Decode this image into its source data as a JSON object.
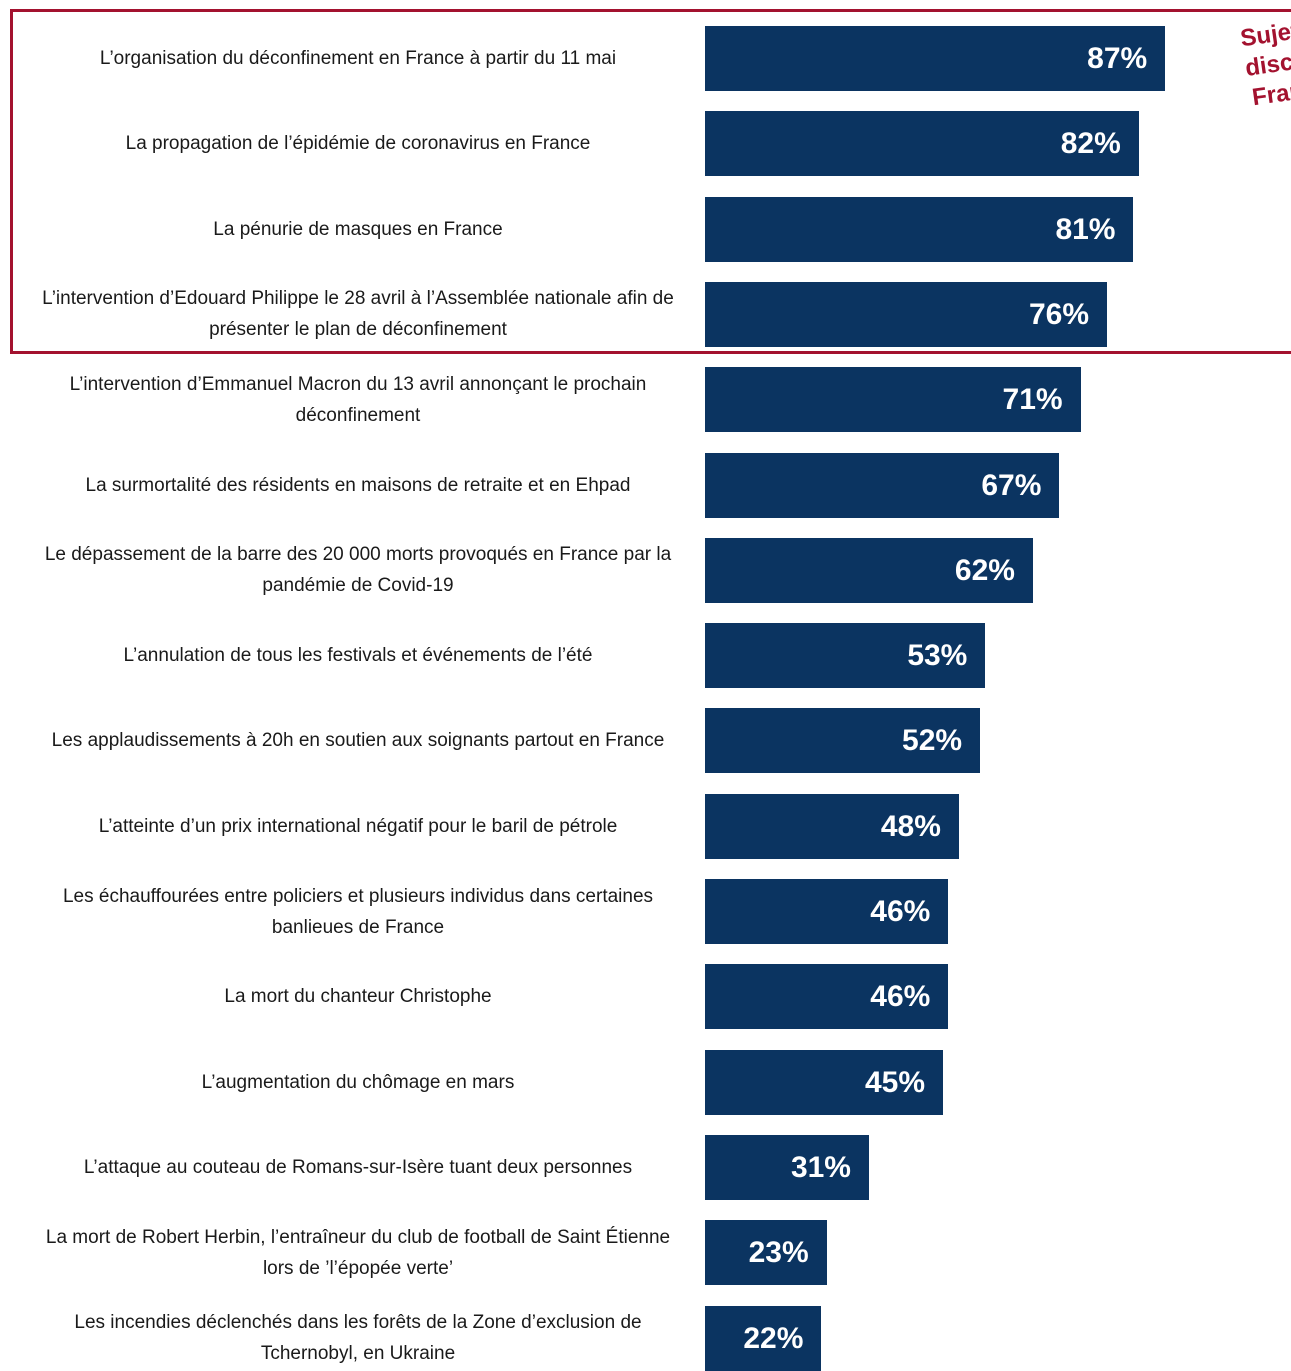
{
  "chart_data": {
    "type": "bar",
    "orientation": "horizontal",
    "categories": [
      "L’organisation du déconfinement en France à partir du 11 mai",
      "La propagation de l’épidémie de coronavirus en France",
      "La pénurie de masques en France",
      "L’intervention d’Edouard Philippe le 28 avril à l’Assemblée nationale afin de présenter le plan de déconfinement",
      "L’intervention d’Emmanuel Macron du 13 avril annonçant le prochain déconfinement",
      "La surmortalité des résidents en maisons de retraite et en Ehpad",
      "Le dépassement de la barre des 20 000 morts provoqués en France par la pandémie de Covid-19",
      "L’annulation de tous les festivals et événements de l’été",
      "Les applaudissements à 20h en soutien aux soignants partout en France",
      "L’atteinte d’un prix international négatif pour le baril de pétrole",
      "Les échauffourées entre policiers et plusieurs individus dans certaines banlieues de France",
      "La mort du chanteur Christophe",
      "L’augmentation du chômage en mars",
      "L’attaque au couteau de Romans-sur-Isère tuant deux personnes",
      "La mort de Robert Herbin, l’entraîneur du club de football de Saint Étienne lors de ’l’épopée verte’",
      "Les incendies déclenchés dans les forêts de la Zone d’exclusion de Tchernobyl, en Ukraine"
    ],
    "values": [
      87,
      82,
      81,
      76,
      71,
      67,
      62,
      53,
      52,
      48,
      46,
      46,
      45,
      31,
      23,
      22
    ],
    "value_labels": [
      "87%",
      "82%",
      "81%",
      "76%",
      "71%",
      "67%",
      "62%",
      "53%",
      "52%",
      "48%",
      "46%",
      "46%",
      "45%",
      "31%",
      "23%",
      "22%"
    ],
    "unit": "%",
    "bar_color": "#0b3461",
    "value_label_color": "#ffffff",
    "highlight": {
      "categories_highlighted": 4,
      "border_color": "#a3122f",
      "annotation": "Sujets\ndiscut\nFranç"
    },
    "title": "",
    "xlabel": "",
    "ylabel": "",
    "grid": false,
    "legend": "none"
  }
}
